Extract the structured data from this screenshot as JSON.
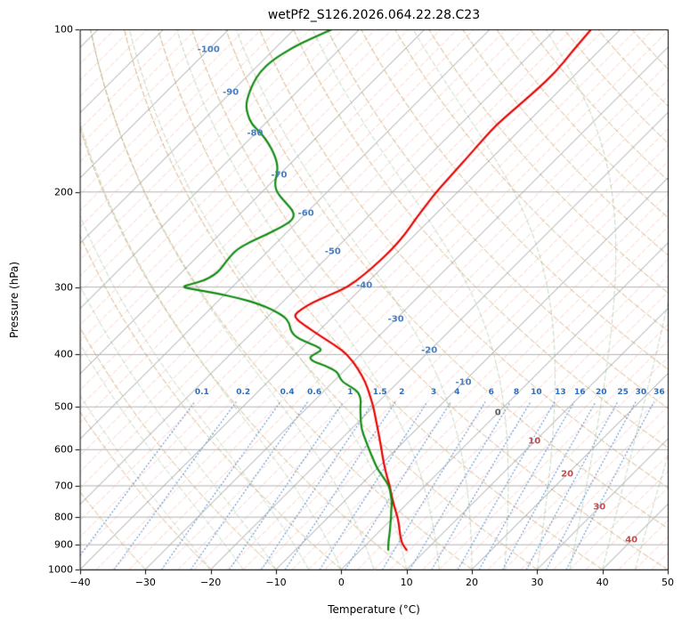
{
  "title": "wetPf2_S126.2026.064.22.28.C23",
  "axes": {
    "xlabel": "Temperature (°C)",
    "ylabel": "Pressure (hPa)",
    "x_tick_labels": [
      "−40",
      "−30",
      "−20",
      "−10",
      "0",
      "10",
      "20",
      "30",
      "40",
      "50"
    ],
    "x_tick_values": [
      -40,
      -30,
      -20,
      -10,
      0,
      10,
      20,
      30,
      40,
      50
    ],
    "y_tick_labels": [
      "100",
      "200",
      "300",
      "400",
      "500",
      "600",
      "700",
      "800",
      "900",
      "1000"
    ],
    "y_tick_values": [
      100,
      200,
      300,
      400,
      500,
      600,
      700,
      800,
      900,
      1000
    ]
  },
  "chart_data": {
    "type": "line",
    "diagram": "skew-t-log-p",
    "title": "wetPf2_S126.2026.064.22.28.C23",
    "xlabel": "Temperature (°C)",
    "ylabel": "Pressure (hPa)",
    "x_range_c": [
      -40,
      50
    ],
    "pressure_range_hpa": [
      1000,
      100
    ],
    "skew": "isotherms-45deg",
    "grid": true,
    "series": [
      {
        "name": "temperature",
        "color": "#e60000",
        "points_p_t": [
          [
            920,
            7.0
          ],
          [
            900,
            5.6
          ],
          [
            875,
            4.3
          ],
          [
            850,
            3.1
          ],
          [
            825,
            1.9
          ],
          [
            800,
            0.6
          ],
          [
            775,
            -0.9
          ],
          [
            750,
            -2.4
          ],
          [
            725,
            -3.9
          ],
          [
            700,
            -5.4
          ],
          [
            675,
            -7.1
          ],
          [
            650,
            -8.8
          ],
          [
            625,
            -10.5
          ],
          [
            600,
            -12.2
          ],
          [
            575,
            -14.0
          ],
          [
            550,
            -15.9
          ],
          [
            525,
            -17.9
          ],
          [
            500,
            -20.0
          ],
          [
            475,
            -22.4
          ],
          [
            450,
            -25.0
          ],
          [
            425,
            -28.2
          ],
          [
            400,
            -32.0
          ],
          [
            385,
            -35.2
          ],
          [
            370,
            -38.9
          ],
          [
            355,
            -42.6
          ],
          [
            345,
            -45.0
          ],
          [
            338,
            -46.2
          ],
          [
            330,
            -46.0
          ],
          [
            320,
            -45.3
          ],
          [
            310,
            -43.8
          ],
          [
            300,
            -42.3
          ],
          [
            285,
            -41.7
          ],
          [
            270,
            -41.4
          ],
          [
            255,
            -41.3
          ],
          [
            240,
            -41.6
          ],
          [
            225,
            -42.3
          ],
          [
            210,
            -42.9
          ],
          [
            200,
            -43.3
          ],
          [
            185,
            -43.6
          ],
          [
            170,
            -43.9
          ],
          [
            160,
            -44.2
          ],
          [
            150,
            -44.4
          ],
          [
            140,
            -44.0
          ],
          [
            130,
            -43.6
          ],
          [
            120,
            -43.4
          ],
          [
            110,
            -44.0
          ],
          [
            100,
            -44.5
          ]
        ]
      },
      {
        "name": "dewpoint",
        "color": "#108a10",
        "points_p_t": [
          [
            920,
            4.2
          ],
          [
            900,
            3.4
          ],
          [
            875,
            2.5
          ],
          [
            850,
            1.6
          ],
          [
            825,
            0.6
          ],
          [
            800,
            -0.4
          ],
          [
            775,
            -1.5
          ],
          [
            750,
            -2.6
          ],
          [
            725,
            -4.0
          ],
          [
            700,
            -5.5
          ],
          [
            675,
            -7.7
          ],
          [
            650,
            -10.0
          ],
          [
            625,
            -12.0
          ],
          [
            600,
            -14.1
          ],
          [
            575,
            -16.2
          ],
          [
            550,
            -18.4
          ],
          [
            525,
            -20.2
          ],
          [
            500,
            -22.0
          ],
          [
            485,
            -23.0
          ],
          [
            470,
            -24.5
          ],
          [
            460,
            -26.3
          ],
          [
            450,
            -28.5
          ],
          [
            440,
            -29.8
          ],
          [
            430,
            -31.0
          ],
          [
            420,
            -33.5
          ],
          [
            412,
            -36.2
          ],
          [
            405,
            -37.4
          ],
          [
            398,
            -37.0
          ],
          [
            392,
            -36.6
          ],
          [
            386,
            -38.0
          ],
          [
            380,
            -40.0
          ],
          [
            374,
            -41.8
          ],
          [
            368,
            -43.2
          ],
          [
            360,
            -44.5
          ],
          [
            350,
            -45.7
          ],
          [
            340,
            -47.5
          ],
          [
            330,
            -50.5
          ],
          [
            322,
            -53.5
          ],
          [
            315,
            -57.0
          ],
          [
            308,
            -61.5
          ],
          [
            303,
            -65.5
          ],
          [
            300,
            -67.7
          ],
          [
            297,
            -67.0
          ],
          [
            292,
            -65.3
          ],
          [
            285,
            -64.6
          ],
          [
            278,
            -64.5
          ],
          [
            270,
            -64.8
          ],
          [
            262,
            -65.0
          ],
          [
            255,
            -65.0
          ],
          [
            248,
            -64.2
          ],
          [
            240,
            -62.8
          ],
          [
            232,
            -61.6
          ],
          [
            225,
            -61.0
          ],
          [
            218,
            -62.0
          ],
          [
            210,
            -64.5
          ],
          [
            200,
            -67.8
          ],
          [
            192,
            -69.5
          ],
          [
            185,
            -70.5
          ],
          [
            178,
            -71.8
          ],
          [
            170,
            -74.0
          ],
          [
            163,
            -76.3
          ],
          [
            156,
            -79.0
          ],
          [
            150,
            -81.9
          ],
          [
            144,
            -84.0
          ],
          [
            138,
            -85.8
          ],
          [
            132,
            -87.0
          ],
          [
            126,
            -88.0
          ],
          [
            120,
            -88.7
          ],
          [
            114,
            -88.6
          ],
          [
            108,
            -87.4
          ],
          [
            104,
            -86.0
          ],
          [
            100,
            -84.2
          ]
        ]
      }
    ],
    "background_lines": {
      "isobars_hpa": [
        100,
        200,
        300,
        400,
        500,
        600,
        700,
        800,
        900,
        1000
      ],
      "isobar_color": "#a9a9a9",
      "isotherms_c": {
        "start": -130,
        "end": 50,
        "step": 10,
        "color": "#a0a0a0"
      },
      "fine_isotherms_c": {
        "start": -130,
        "end": 50,
        "step": 2.5,
        "color": "#f08878"
      },
      "dry_adiabats_theta_c": {
        "start": -40,
        "end": 200,
        "step": 10,
        "color": "#c9a470"
      },
      "moist_adiabats_thetaw_c": {
        "start": -20,
        "end": 50,
        "step": 5,
        "color": "#569656"
      },
      "mixing_ratio_g_kg": [
        0.1,
        0.2,
        0.4,
        0.6,
        1,
        1.5,
        2,
        3,
        4,
        6,
        8,
        10,
        13,
        16,
        20,
        25,
        30,
        36
      ],
      "mixing_ratio_color": "#2d6ebe",
      "mixing_ratio_top_hpa": 490
    },
    "isotherm_labels": [
      {
        "text": "-100",
        "t": -100,
        "p": 109,
        "color": "#4a80c0"
      },
      {
        "text": "-90",
        "t": -90,
        "p": 131,
        "color": "#4a80c0"
      },
      {
        "text": "-80",
        "t": -80,
        "p": 156,
        "color": "#4a80c0"
      },
      {
        "text": "-70",
        "t": -70,
        "p": 186,
        "color": "#4a80c0"
      },
      {
        "text": "-60",
        "t": -60,
        "p": 219,
        "color": "#4a80c0"
      },
      {
        "text": "-50",
        "t": -50,
        "p": 258,
        "color": "#4a80c0"
      },
      {
        "text": "-40",
        "t": -40,
        "p": 298,
        "color": "#4a80c0"
      },
      {
        "text": "-30",
        "t": -30,
        "p": 344,
        "color": "#4a80c0"
      },
      {
        "text": "-20",
        "t": -20,
        "p": 394,
        "color": "#4a80c0"
      },
      {
        "text": "-10",
        "t": -10,
        "p": 450,
        "color": "#4a80c0"
      },
      {
        "text": "0",
        "t": 0,
        "p": 513,
        "color": "#606060"
      },
      {
        "text": "10",
        "t": 10,
        "p": 580,
        "color": "#c05050"
      },
      {
        "text": "20",
        "t": 20,
        "p": 666,
        "color": "#c05050"
      },
      {
        "text": "30",
        "t": 30,
        "p": 767,
        "color": "#c05050"
      },
      {
        "text": "40",
        "t": 40,
        "p": 884,
        "color": "#c05050"
      }
    ],
    "mixing_ratio_labels_at_hpa": 470,
    "mixing_ratio_label_color": "#2d6ebe"
  }
}
